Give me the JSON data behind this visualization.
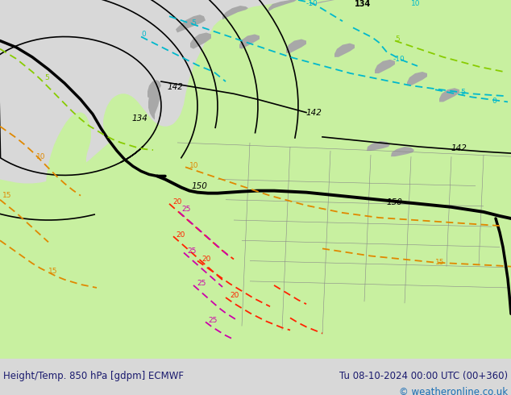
{
  "title_left": "Height/Temp. 850 hPa [gdpm] ECMWF",
  "title_right": "Tu 08-10-2024 00:00 UTC (00+360)",
  "copyright": "© weatheronline.co.uk",
  "bg_color": "#e8e8e8",
  "land_green": "#c8f0a0",
  "land_gray": "#a8a8a8",
  "ocean_gray": "#e0e0e0",
  "title_left_color": "#1a1a6e",
  "title_right_color": "#1a1a6e",
  "copyright_color": "#1a6eb4",
  "footer_bg": "#d8d8d8",
  "cyan_color": "#00b8cc",
  "green_iso_color": "#88cc00",
  "orange_color": "#e08800",
  "red_color": "#ff2200",
  "magenta_color": "#cc00aa",
  "black_contour": "#000000",
  "fig_width": 6.34,
  "fig_height": 4.9,
  "dpi": 100
}
